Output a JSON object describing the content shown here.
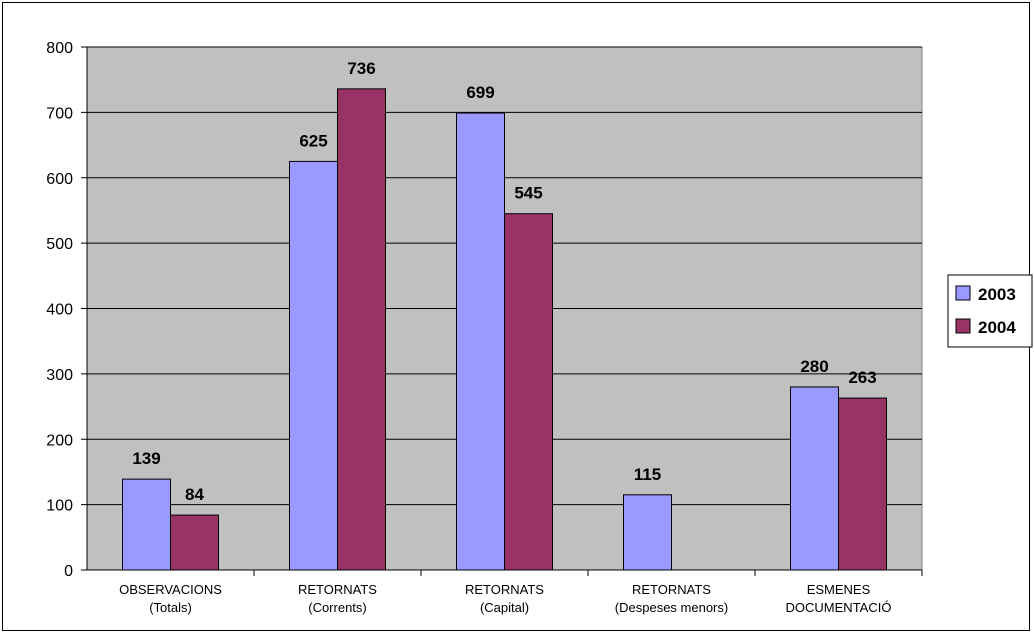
{
  "chart_data": {
    "type": "bar",
    "categories": [
      [
        "OBSERVACIONS",
        "(Totals)"
      ],
      [
        "RETORNATS",
        "(Corrents)"
      ],
      [
        "RETORNATS",
        "(Capital)"
      ],
      [
        "RETORNATS",
        "(Despeses menors)"
      ],
      [
        "ESMENES",
        "DOCUMENTACIÓ"
      ]
    ],
    "series": [
      {
        "name": "2003",
        "color": "#9999ff",
        "values": [
          139,
          625,
          699,
          115,
          280
        ]
      },
      {
        "name": "2004",
        "color": "#993366",
        "values": [
          84,
          736,
          545,
          null,
          263
        ]
      }
    ],
    "ylim": [
      0,
      800
    ],
    "yticks": [
      0,
      100,
      200,
      300,
      400,
      500,
      600,
      700,
      800
    ],
    "grid": true,
    "plot_background": "#c0c0c0",
    "legend_position": "right"
  }
}
